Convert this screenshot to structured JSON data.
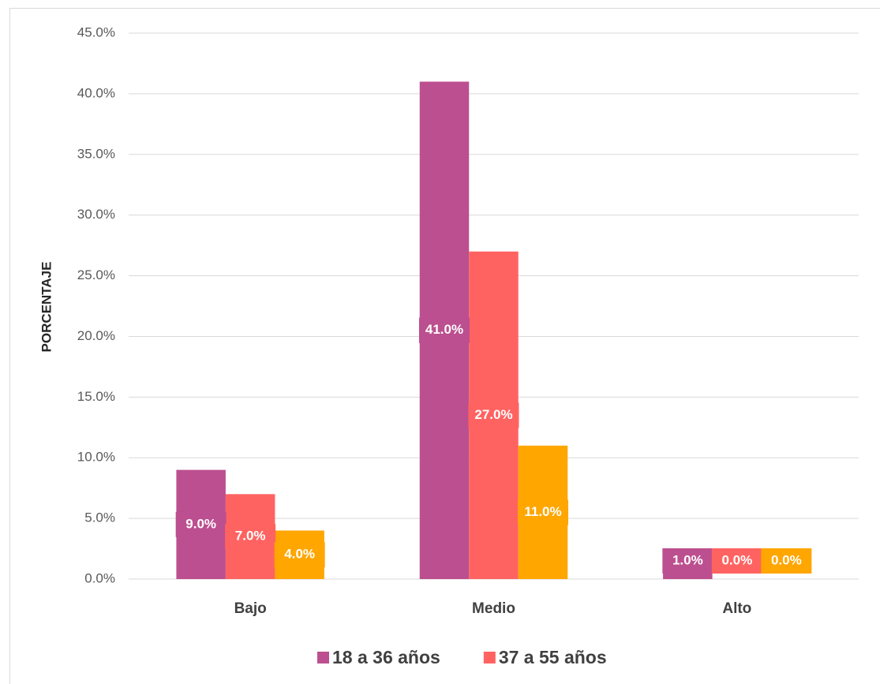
{
  "chart_data": {
    "type": "bar",
    "y_label": "PORCENTAJE",
    "categories": [
      "Bajo",
      "Medio",
      "Alto"
    ],
    "series": [
      {
        "name": "18 a 36 años",
        "color": "#bc4f8f",
        "values": [
          9,
          41,
          1
        ],
        "value_labels": [
          "9.0%",
          "41.0%",
          "1.0%"
        ]
      },
      {
        "name": "37 a 55 años",
        "color": "#ff6361",
        "values": [
          7,
          27,
          0
        ],
        "value_labels": [
          "7.0%",
          "27.0%",
          "0.0%"
        ]
      },
      {
        "color": "#ffa600",
        "values": [
          4,
          11,
          0
        ],
        "value_labels": [
          "4.0%",
          "11.0%",
          "0.0%"
        ]
      }
    ],
    "ylim": [
      0,
      45
    ],
    "yticks": [
      {
        "value": 0,
        "label": "0.0%"
      },
      {
        "value": 5,
        "label": "5.0%"
      },
      {
        "value": 10,
        "label": "10.0%"
      },
      {
        "value": 15,
        "label": "15.0%"
      },
      {
        "value": 20,
        "label": "20.0%"
      },
      {
        "value": 25,
        "label": "25.0%"
      },
      {
        "value": 30,
        "label": "30.0%"
      },
      {
        "value": 35,
        "label": "35.0%"
      },
      {
        "value": 40,
        "label": "40.0%"
      },
      {
        "value": 45,
        "label": "45.0%"
      }
    ],
    "grid": true,
    "legend": "bottom"
  }
}
